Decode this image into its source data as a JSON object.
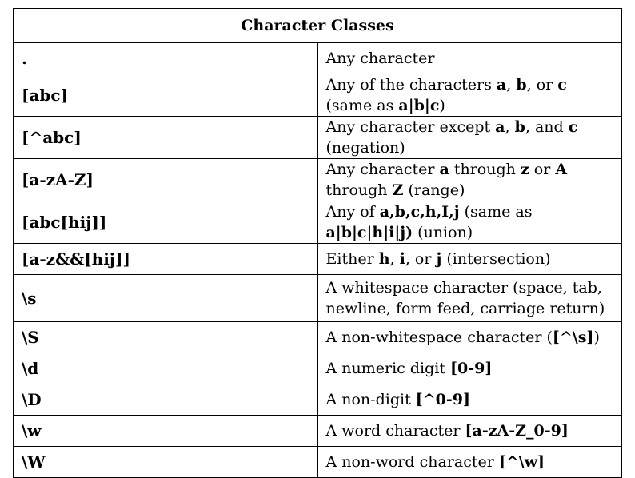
{
  "title": "Character Classes",
  "rows": [
    {
      "symbol": ".",
      "desc": [
        {
          "t": "Any character",
          "b": false
        }
      ]
    },
    {
      "symbol": "[abc]",
      "desc": [
        {
          "t": "Any of the characters ",
          "b": false
        },
        {
          "t": "a",
          "b": true
        },
        {
          "t": ", ",
          "b": false
        },
        {
          "t": "b",
          "b": true
        },
        {
          "t": ", or ",
          "b": false
        },
        {
          "t": "c",
          "b": true
        },
        {
          "t": " (same as ",
          "b": false
        },
        {
          "t": "a|b|c",
          "b": true
        },
        {
          "t": ")",
          "b": false
        }
      ]
    },
    {
      "symbol": "[^abc]",
      "desc": [
        {
          "t": "Any character except ",
          "b": false
        },
        {
          "t": "a",
          "b": true
        },
        {
          "t": ", ",
          "b": false
        },
        {
          "t": "b",
          "b": true
        },
        {
          "t": ", and ",
          "b": false
        },
        {
          "t": "c",
          "b": true
        },
        {
          "t": " (negation)",
          "b": false
        }
      ]
    },
    {
      "symbol": "[a-zA-Z]",
      "desc": [
        {
          "t": "Any character ",
          "b": false
        },
        {
          "t": "a",
          "b": true
        },
        {
          "t": " through ",
          "b": false
        },
        {
          "t": "z",
          "b": true
        },
        {
          "t": " or ",
          "b": false
        },
        {
          "t": "A",
          "b": true
        },
        {
          "t": " through ",
          "b": false
        },
        {
          "t": "Z",
          "b": true
        },
        {
          "t": " (range)",
          "b": false
        }
      ]
    },
    {
      "symbol": "[abc[hij]]",
      "desc": [
        {
          "t": "Any of ",
          "b": false
        },
        {
          "t": "a,b,c,h,I,j",
          "b": true
        },
        {
          "t": " (same as ",
          "b": false
        },
        {
          "t": "a|b|c|h|i|j)",
          "b": true
        },
        {
          "t": " (union)",
          "b": false
        }
      ]
    },
    {
      "symbol": "[a-z&&[hij]]",
      "desc": [
        {
          "t": "Either ",
          "b": false
        },
        {
          "t": "h",
          "b": true
        },
        {
          "t": ", ",
          "b": false
        },
        {
          "t": "i",
          "b": true
        },
        {
          "t": ", or ",
          "b": false
        },
        {
          "t": "j",
          "b": true
        },
        {
          "t": " (intersection)",
          "b": false
        }
      ]
    },
    {
      "symbol": "\\s",
      "desc": [
        {
          "t": "A whitespace character (space, tab, newline, form feed, carriage return)",
          "b": false
        }
      ]
    },
    {
      "symbol": "\\S",
      "desc": [
        {
          "t": "A non-whitespace character (",
          "b": false
        },
        {
          "t": "[^\\s]",
          "b": true
        },
        {
          "t": ")",
          "b": false
        }
      ]
    },
    {
      "symbol": "\\d",
      "desc": [
        {
          "t": "A numeric digit ",
          "b": false
        },
        {
          "t": "[0-9]",
          "b": true
        }
      ]
    },
    {
      "symbol": "\\D",
      "desc": [
        {
          "t": "A non-digit ",
          "b": false
        },
        {
          "t": "[^0-9]",
          "b": true
        }
      ]
    },
    {
      "symbol": "\\w",
      "desc": [
        {
          "t": "A word character ",
          "b": false
        },
        {
          "t": "[a-zA-Z_0-9]",
          "b": true
        }
      ]
    },
    {
      "symbol": "\\W",
      "desc": [
        {
          "t": "A non-word character ",
          "b": false
        },
        {
          "t": "[^\\w]",
          "b": true
        }
      ]
    }
  ]
}
